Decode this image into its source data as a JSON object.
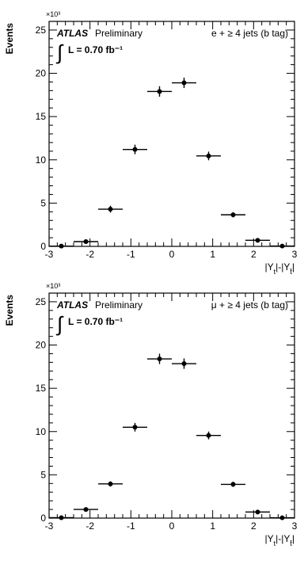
{
  "chart_data": [
    {
      "type": "scatter",
      "ylabel": "Events",
      "y_multiplier": "×10³",
      "xlabel": "|Y_t|-|Y_t̄|",
      "xlabel_text": "|Yt|-|Yt̄|",
      "xlim": [
        -3,
        3
      ],
      "ylim": [
        0,
        26000
      ],
      "xticks": [
        -3,
        -2,
        -1,
        0,
        1,
        2,
        3
      ],
      "yticks": [
        0,
        5,
        10,
        15,
        20,
        25
      ],
      "bin_width": 0.6,
      "atlas_label": "ATLAS",
      "preliminary_label": "Preliminary",
      "luminosity_label": "L = 0.70 fb⁻¹",
      "channel_label": "e + ≥ 4 jets (b tag)",
      "series": [
        {
          "x": [
            -2.7,
            -2.1,
            -1.5,
            -0.9,
            -0.3,
            0.3,
            0.9,
            1.5,
            2.1,
            2.7
          ],
          "values": [
            30,
            550,
            4300,
            11200,
            17900,
            18900,
            10450,
            3650,
            700,
            40
          ],
          "errors": [
            20,
            100,
            400,
            550,
            600,
            600,
            500,
            300,
            120,
            20
          ]
        }
      ]
    },
    {
      "type": "scatter",
      "ylabel": "Events",
      "y_multiplier": "×10³",
      "xlabel": "|Y_t|-|Y_t̄|",
      "xlabel_text": "|Yt|-|Yt̄|",
      "xlim": [
        -3,
        3
      ],
      "ylim": [
        0,
        26000
      ],
      "xticks": [
        -3,
        -2,
        -1,
        0,
        1,
        2,
        3
      ],
      "yticks": [
        0,
        5,
        10,
        15,
        20,
        25
      ],
      "bin_width": 0.6,
      "atlas_label": "ATLAS",
      "preliminary_label": "Preliminary",
      "luminosity_label": "L = 0.70 fb⁻¹",
      "channel_label": "μ + ≥ 4 jets (b tag)",
      "series": [
        {
          "x": [
            -2.7,
            -2.1,
            -1.5,
            -0.9,
            -0.3,
            0.3,
            0.9,
            1.5,
            2.1,
            2.7
          ],
          "values": [
            50,
            1000,
            3950,
            10500,
            18400,
            17850,
            9550,
            3900,
            700,
            40
          ],
          "errors": [
            20,
            150,
            300,
            500,
            600,
            600,
            450,
            300,
            120,
            20
          ]
        }
      ]
    }
  ]
}
